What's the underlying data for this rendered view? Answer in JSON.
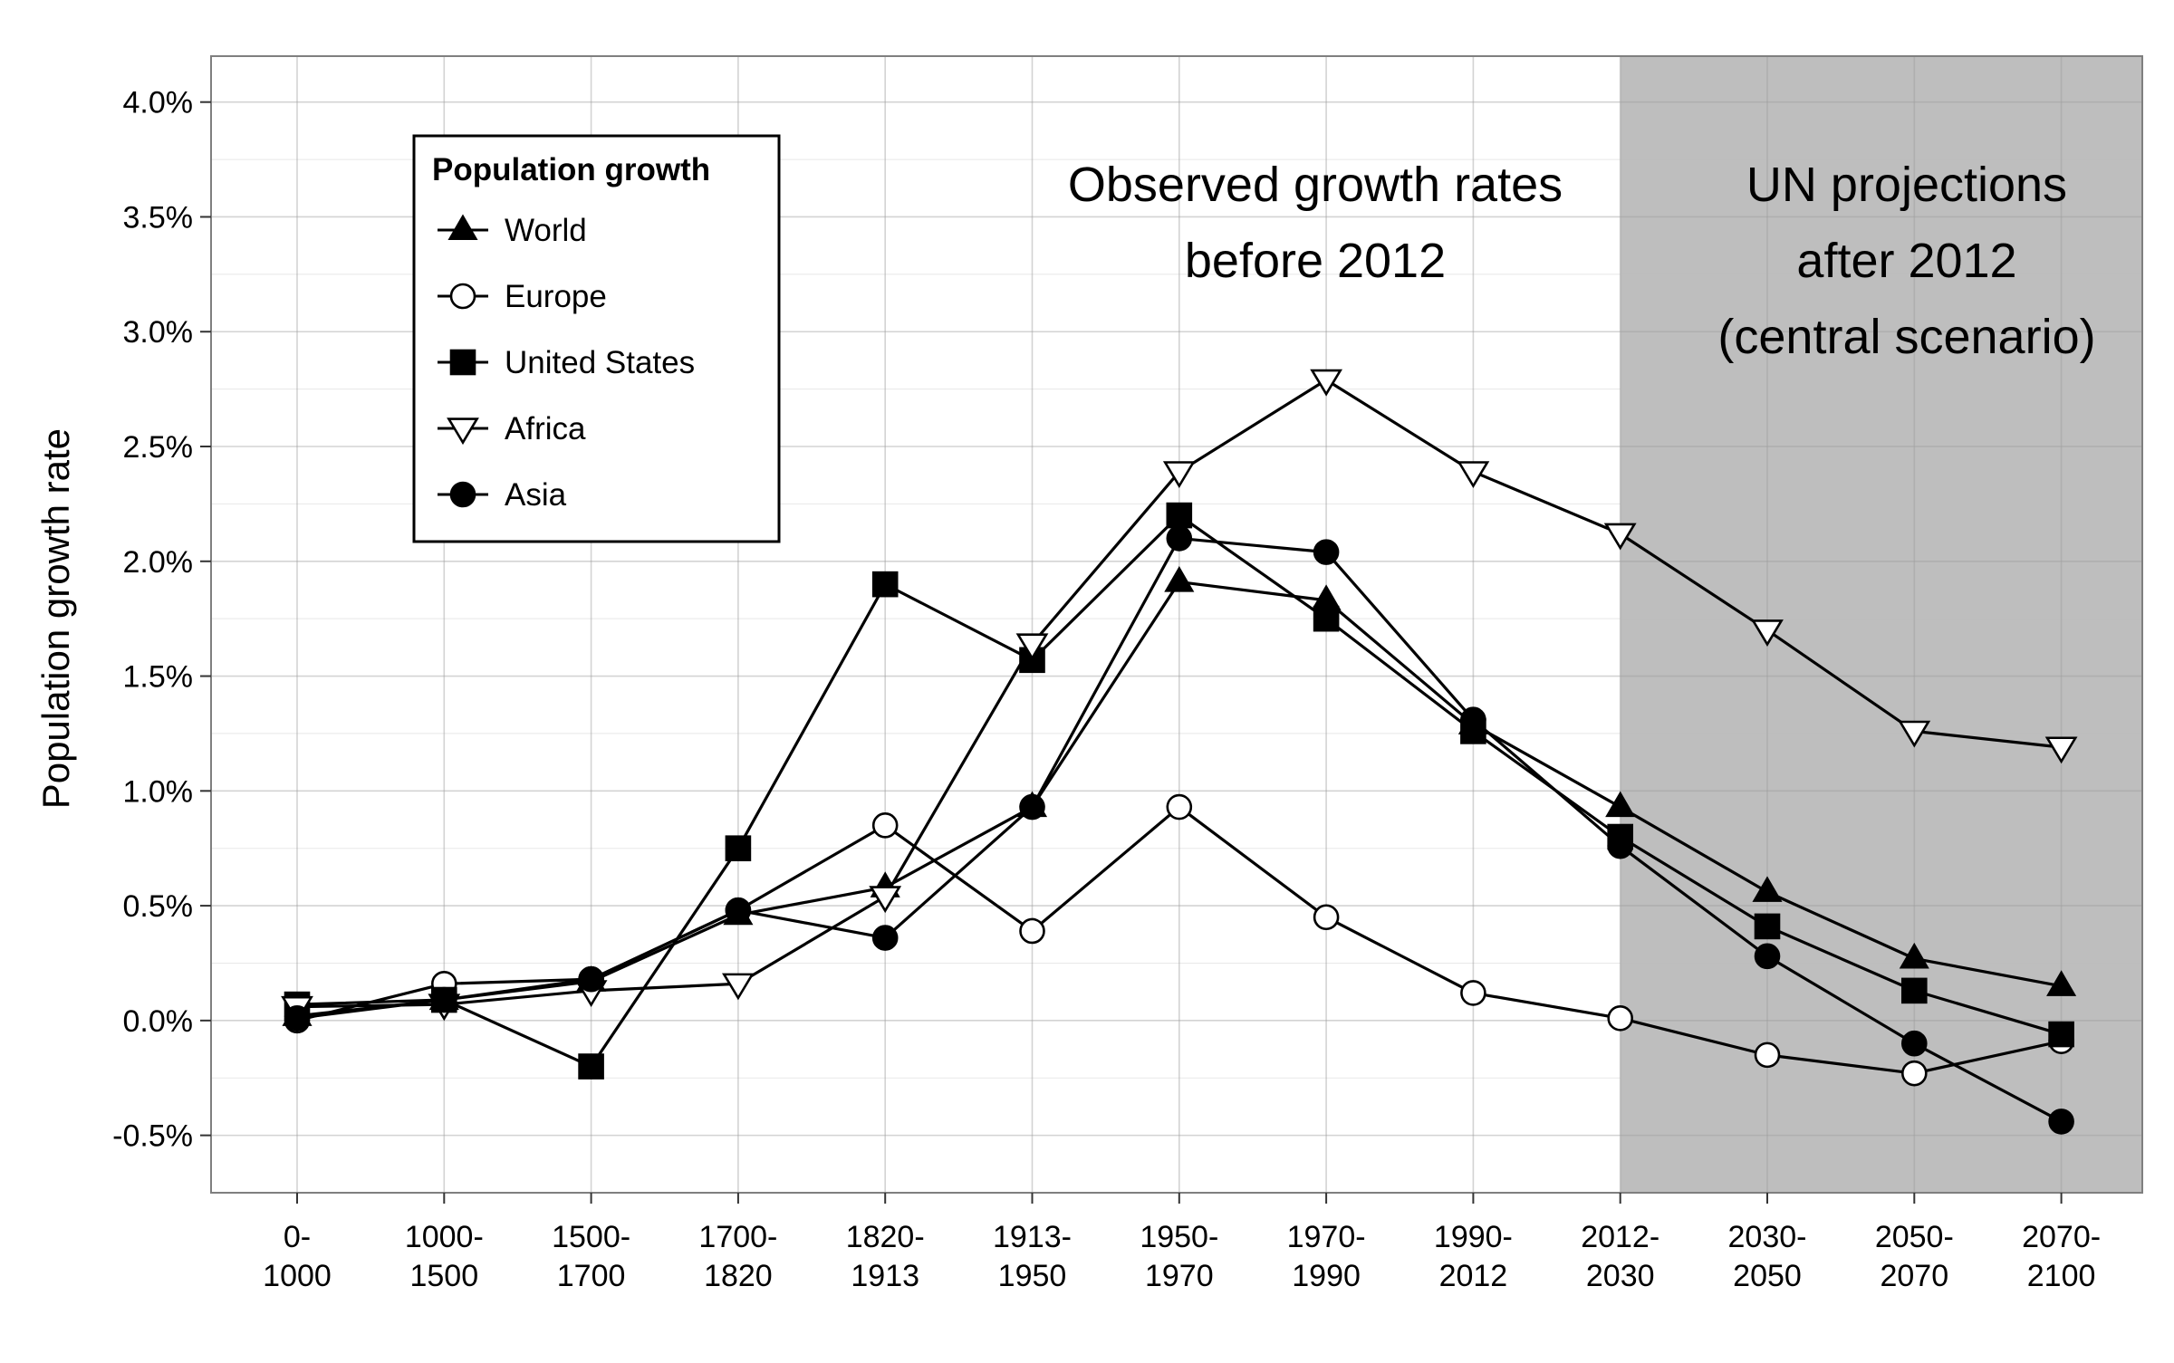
{
  "chart_data": {
    "type": "line",
    "title": "",
    "xlabel": "",
    "ylabel": "Population growth rate",
    "ylim": [
      -0.75,
      4.2
    ],
    "y_ticks": [
      -0.5,
      0.0,
      0.5,
      1.0,
      1.5,
      2.0,
      2.5,
      3.0,
      3.5,
      4.0
    ],
    "y_tick_labels": [
      "-0.5%",
      "0.0%",
      "0.5%",
      "1.0%",
      "1.5%",
      "2.0%",
      "2.5%",
      "3.0%",
      "3.5%",
      "4.0%"
    ],
    "categories": [
      [
        "0-",
        "1000"
      ],
      [
        "1000-",
        "1500"
      ],
      [
        "1500-",
        "1700"
      ],
      [
        "1700-",
        "1820"
      ],
      [
        "1820-",
        "1913"
      ],
      [
        "1913-",
        "1950"
      ],
      [
        "1950-",
        "1970"
      ],
      [
        "1970-",
        "1990"
      ],
      [
        "1990-",
        "2012"
      ],
      [
        "2012-",
        "2030"
      ],
      [
        "2030-",
        "2050"
      ],
      [
        "2050-",
        "2070"
      ],
      [
        "2070-",
        "2100"
      ]
    ],
    "shaded_region": {
      "from_category_index": 9,
      "to": "end",
      "color": "#bebebe"
    },
    "grid": true,
    "legend": {
      "title": "Population growth",
      "placement": "top-left"
    },
    "annotations": {
      "observed": [
        "Observed growth rates",
        "before 2012"
      ],
      "projected": [
        "UN projections",
        "after 2012",
        "(central scenario)"
      ]
    },
    "series": [
      {
        "name": "World",
        "marker": "triangle-up-filled",
        "values": [
          0.02,
          0.09,
          0.17,
          0.46,
          0.58,
          0.93,
          1.91,
          1.83,
          1.29,
          0.93,
          0.56,
          0.27,
          0.15
        ]
      },
      {
        "name": "Europe",
        "marker": "circle-open",
        "values": [
          0.0,
          0.16,
          0.18,
          0.48,
          0.85,
          0.39,
          0.93,
          0.45,
          0.12,
          0.01,
          -0.15,
          -0.23,
          -0.09
        ]
      },
      {
        "name": "United States",
        "marker": "square-filled",
        "values": [
          0.07,
          0.09,
          -0.2,
          0.75,
          1.9,
          1.57,
          2.2,
          1.75,
          1.26,
          0.8,
          0.41,
          0.13,
          -0.06
        ]
      },
      {
        "name": "Africa",
        "marker": "triangle-down-open",
        "values": [
          0.06,
          0.07,
          0.13,
          0.16,
          0.54,
          1.64,
          2.39,
          2.79,
          2.39,
          2.12,
          1.7,
          1.26,
          1.19
        ]
      },
      {
        "name": "Asia",
        "marker": "circle-filled",
        "values": [
          0.01,
          0.09,
          0.18,
          0.48,
          0.36,
          0.93,
          2.1,
          2.04,
          1.31,
          0.76,
          0.28,
          -0.1,
          -0.44
        ]
      }
    ]
  }
}
